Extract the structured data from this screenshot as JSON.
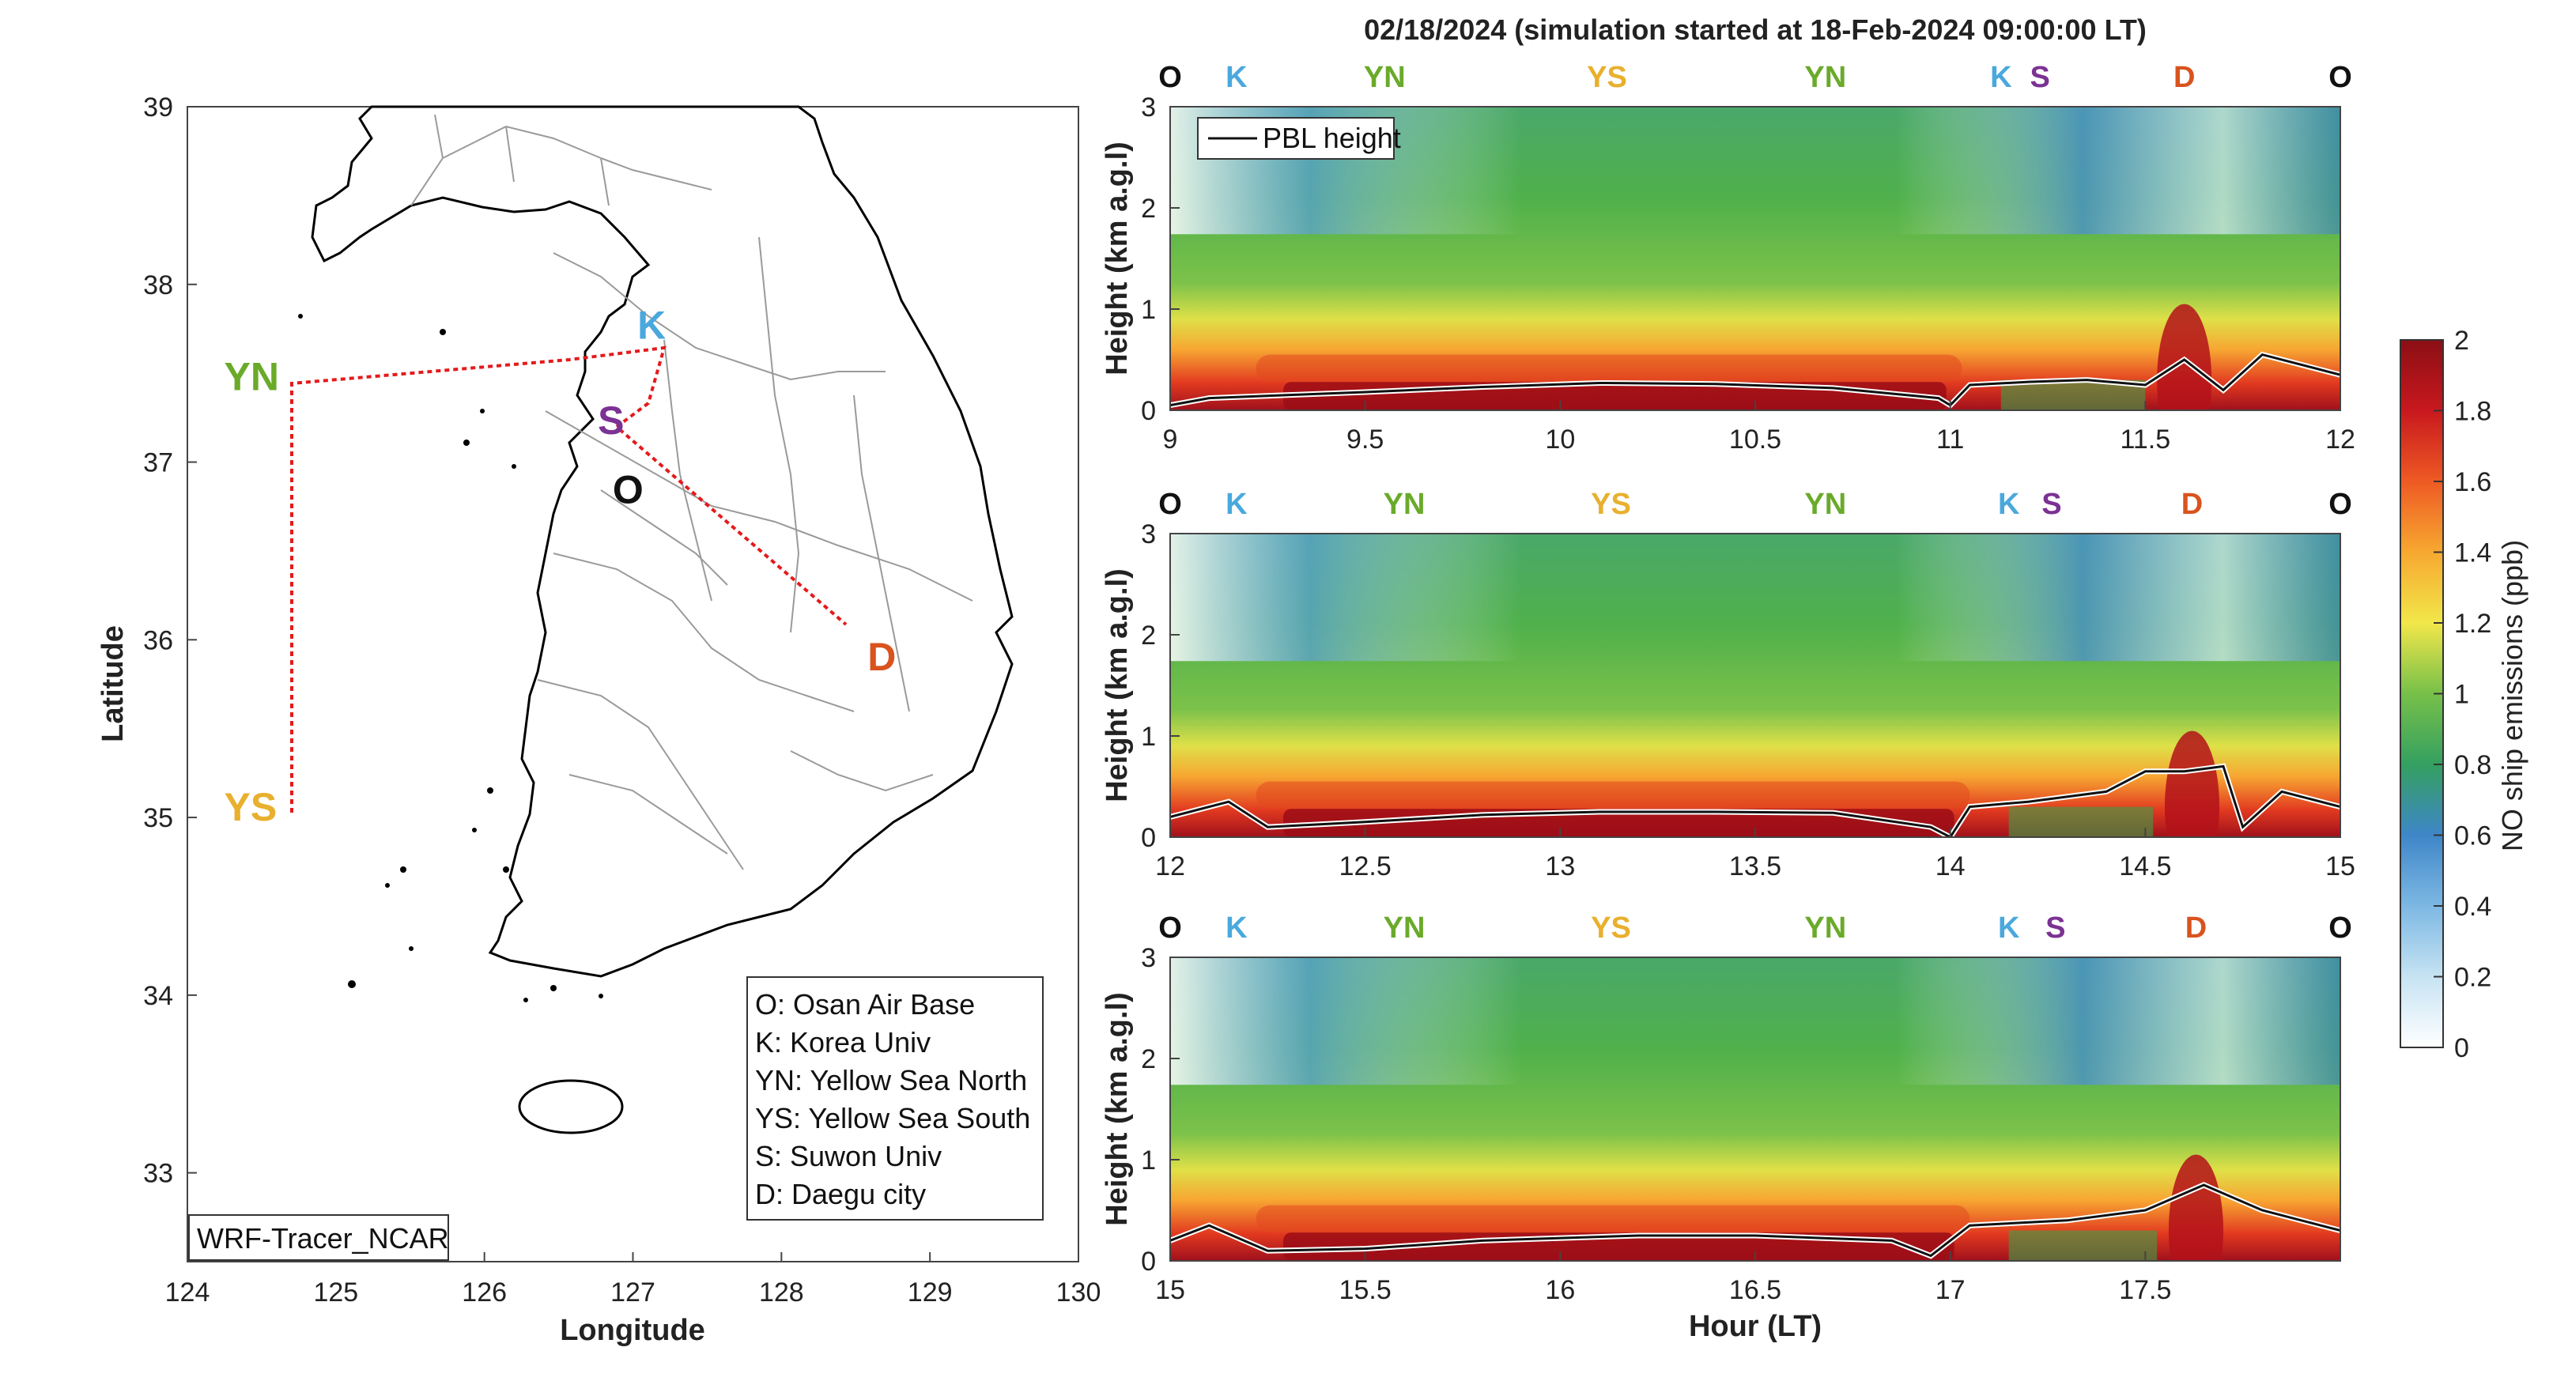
{
  "colors": {
    "O": "#111111",
    "K": "#4aa8dd",
    "YN": "#6aaa2a",
    "YS": "#e8b02e",
    "S": "#7b3294",
    "D": "#d9531e",
    "route": "#e41a1c"
  },
  "map": {
    "xlabel": "Longitude",
    "ylabel": "Latitude",
    "xlim": [
      124,
      130
    ],
    "ylim": [
      32.5,
      39
    ],
    "xticks": [
      "124",
      "125",
      "126",
      "127",
      "128",
      "129",
      "130"
    ],
    "yticks": [
      "33",
      "34",
      "35",
      "36",
      "37",
      "38",
      "39"
    ],
    "tag": "WRF-Tracer_NCAR",
    "legend": [
      "O: Osan Air Base",
      "K: Korea Univ",
      "YN: Yellow Sea North",
      "YS: Yellow Sea South",
      "S: Suwon Univ",
      "D: Daegu city"
    ],
    "sites": [
      {
        "label": "YN",
        "lon": 124.7,
        "lat": 37.45
      },
      {
        "label": "YS",
        "lon": 124.7,
        "lat": 35.05
      },
      {
        "label": "K",
        "lon": 127.2,
        "lat": 37.65
      },
      {
        "label": "S",
        "lon": 126.95,
        "lat": 37.3
      },
      {
        "label": "O",
        "lon": 127.05,
        "lat": 37.08
      },
      {
        "label": "D",
        "lon": 128.5,
        "lat": 36.05
      }
    ]
  },
  "chart_data": {
    "type": "heatmap",
    "title": "02/18/2024 (simulation started at 18-Feb-2024 09:00:00 LT)",
    "ylabel": "Height (km a.g.l)",
    "xlabel": "Hour (LT)",
    "legend": "PBL height",
    "colorbar": {
      "label": "NO ship emissions (ppb)",
      "range": [
        0,
        2
      ],
      "ticks": [
        "0",
        "0.2",
        "0.4",
        "0.6",
        "0.8",
        "1",
        "1.2",
        "1.4",
        "1.6",
        "1.8",
        "2"
      ]
    },
    "panels": [
      {
        "xlim": [
          9,
          12
        ],
        "ylim": [
          0,
          3
        ],
        "xticks": [
          "9",
          "9.5",
          "10",
          "10.5",
          "11",
          "11.5",
          "12"
        ],
        "yticks": [
          "0",
          "1",
          "2",
          "3"
        ],
        "site_labels": [
          {
            "label": "O",
            "x": 9.0
          },
          {
            "label": "K",
            "x": 9.17
          },
          {
            "label": "YN",
            "x": 9.55
          },
          {
            "label": "YS",
            "x": 10.12
          },
          {
            "label": "YN",
            "x": 10.68
          },
          {
            "label": "K",
            "x": 11.13
          },
          {
            "label": "S",
            "x": 11.23
          },
          {
            "label": "D",
            "x": 11.6
          },
          {
            "label": "O",
            "x": 12.0
          }
        ],
        "pbl": [
          [
            9,
            0.05
          ],
          [
            9.1,
            0.12
          ],
          [
            9.3,
            0.15
          ],
          [
            9.5,
            0.18
          ],
          [
            9.8,
            0.23
          ],
          [
            10.1,
            0.27
          ],
          [
            10.4,
            0.26
          ],
          [
            10.7,
            0.22
          ],
          [
            10.97,
            0.12
          ],
          [
            11.0,
            0.05
          ],
          [
            11.05,
            0.25
          ],
          [
            11.2,
            0.28
          ],
          [
            11.35,
            0.3
          ],
          [
            11.5,
            0.25
          ],
          [
            11.6,
            0.5
          ],
          [
            11.7,
            0.2
          ],
          [
            11.8,
            0.55
          ],
          [
            12,
            0.35
          ]
        ]
      },
      {
        "xlim": [
          12,
          15
        ],
        "ylim": [
          0,
          3
        ],
        "xticks": [
          "12",
          "12.5",
          "13",
          "13.5",
          "14",
          "14.5",
          "15"
        ],
        "yticks": [
          "0",
          "1",
          "2",
          "3"
        ],
        "site_labels": [
          {
            "label": "O",
            "x": 12.0
          },
          {
            "label": "K",
            "x": 12.17
          },
          {
            "label": "YN",
            "x": 12.6
          },
          {
            "label": "YS",
            "x": 13.13
          },
          {
            "label": "YN",
            "x": 13.68
          },
          {
            "label": "K",
            "x": 14.15
          },
          {
            "label": "S",
            "x": 14.26
          },
          {
            "label": "D",
            "x": 14.62
          },
          {
            "label": "O",
            "x": 15.0
          }
        ],
        "pbl": [
          [
            12,
            0.2
          ],
          [
            12.15,
            0.35
          ],
          [
            12.25,
            0.1
          ],
          [
            12.5,
            0.15
          ],
          [
            12.8,
            0.22
          ],
          [
            13.1,
            0.25
          ],
          [
            13.4,
            0.25
          ],
          [
            13.7,
            0.24
          ],
          [
            13.95,
            0.1
          ],
          [
            14.0,
            0.0
          ],
          [
            14.05,
            0.3
          ],
          [
            14.2,
            0.35
          ],
          [
            14.4,
            0.45
          ],
          [
            14.5,
            0.65
          ],
          [
            14.6,
            0.65
          ],
          [
            14.7,
            0.7
          ],
          [
            14.75,
            0.1
          ],
          [
            14.85,
            0.45
          ],
          [
            15,
            0.3
          ]
        ]
      },
      {
        "xlim": [
          15,
          18
        ],
        "ylim": [
          0,
          3
        ],
        "xticks": [
          "15",
          "15.5",
          "16",
          "16.5",
          "17",
          "17.5"
        ],
        "yticks": [
          "0",
          "1",
          "2",
          "3"
        ],
        "site_labels": [
          {
            "label": "O",
            "x": 15.0
          },
          {
            "label": "K",
            "x": 15.17
          },
          {
            "label": "YN",
            "x": 15.6
          },
          {
            "label": "YS",
            "x": 16.13
          },
          {
            "label": "YN",
            "x": 16.68
          },
          {
            "label": "K",
            "x": 17.15
          },
          {
            "label": "S",
            "x": 17.27
          },
          {
            "label": "D",
            "x": 17.63
          },
          {
            "label": "O",
            "x": 18.0
          }
        ],
        "pbl": [
          [
            15,
            0.2
          ],
          [
            15.1,
            0.35
          ],
          [
            15.25,
            0.1
          ],
          [
            15.5,
            0.12
          ],
          [
            15.8,
            0.2
          ],
          [
            16.2,
            0.25
          ],
          [
            16.5,
            0.25
          ],
          [
            16.85,
            0.2
          ],
          [
            16.95,
            0.05
          ],
          [
            17.05,
            0.35
          ],
          [
            17.3,
            0.4
          ],
          [
            17.5,
            0.5
          ],
          [
            17.65,
            0.75
          ],
          [
            17.8,
            0.5
          ],
          [
            17.95,
            0.35
          ],
          [
            18,
            0.3
          ]
        ]
      }
    ]
  }
}
